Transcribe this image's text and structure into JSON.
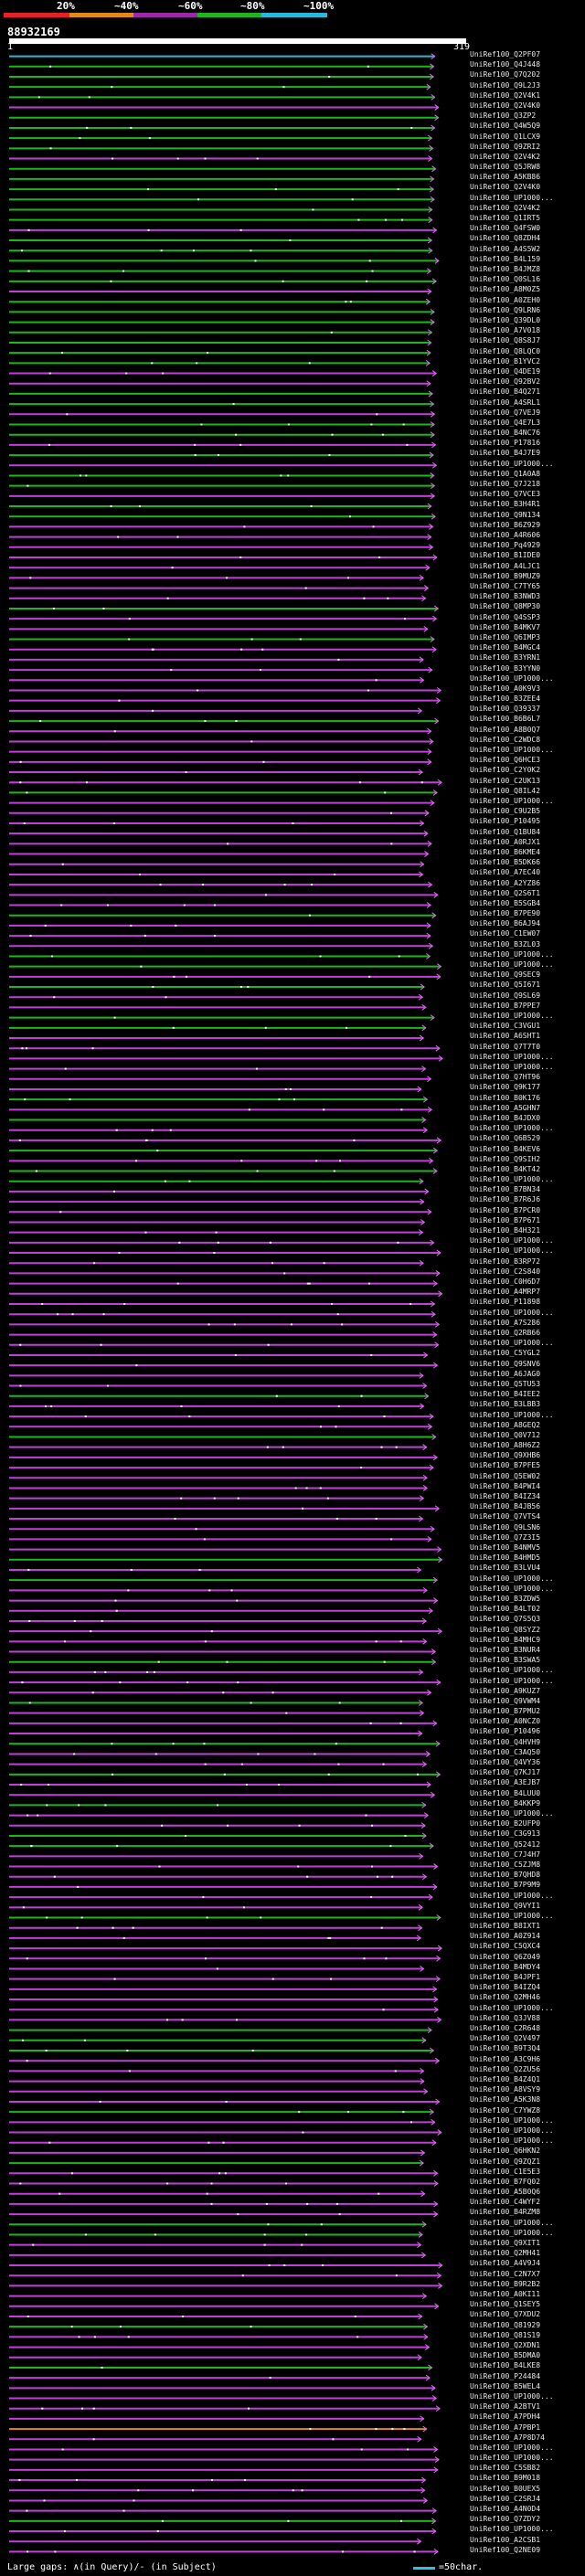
{
  "legend": {
    "labels": [
      "20%",
      "~40%",
      "~60%",
      "~80%",
      "~100%"
    ],
    "colors": [
      "#e8202a",
      "#e08a1c",
      "#9c2aa8",
      "#1fb51f",
      "#2bb8d8"
    ]
  },
  "query": {
    "id": "88932169",
    "start": "1",
    "end": "319"
  },
  "hits": [
    "UniRef100_Q2PF07",
    "UniRef100_Q4J448",
    "UniRef100_Q7Q202",
    "UniRef100_Q9L2J3",
    "UniRef100_Q2V4K1",
    "UniRef100_Q2V4K0",
    "UniRef100_Q3ZP2",
    "UniRef100_Q4W5Q9",
    "UniRef100_Q1LCX9",
    "UniRef100_Q9ZRI2",
    "UniRef100_Q2V4K2",
    "UniRef100_Q5JRW8",
    "UniRef100_A5KB86",
    "UniRef100_Q2V4K0",
    "UniRef100_UP1000...",
    "UniRef100_Q2V4K2",
    "UniRef100_Q1IRT5",
    "UniRef100_Q4FSW0",
    "UniRef100_Q8ZDH4",
    "UniRef100_A4S5W2",
    "UniRef100_B4L159",
    "UniRef100_B4JMZ8",
    "UniRef100_Q0SL16",
    "UniRef100_A8M0Z5",
    "UniRef100_A0ZEH0",
    "UniRef100_Q9LRN6",
    "UniRef100_Q39DL0",
    "UniRef100_A7V018",
    "UniRef100_Q8S8J7",
    "UniRef100_Q8LQC0",
    "UniRef100_B1YVC2",
    "UniRef100_Q4DE19",
    "UniRef100_Q92BV2",
    "UniRef100_B4Q271",
    "UniRef100_A4SRL1",
    "UniRef100_Q7VEJ9",
    "UniRef100_Q4E7L3",
    "UniRef100_B4NC76",
    "UniRef100_P17816",
    "UniRef100_B4J7E9",
    "UniRef100_UP1000...",
    "UniRef100_Q1A0A8",
    "UniRef100_Q7J218",
    "UniRef100_Q7VCE3",
    "UniRef100_B3H4R1",
    "UniRef100_Q9N134",
    "UniRef100_B6Z929",
    "UniRef100_A4R606",
    "UniRef100_Pq4929",
    "UniRef100_B1IDE0",
    "UniRef100_A4LJC1",
    "UniRef100_B9MUZ9",
    "UniRef100_C7TY65",
    "UniRef100_B3NWD3",
    "UniRef100_Q8MP30",
    "UniRef100_Q4SSP3",
    "UniRef100_B4MKV7",
    "UniRef100_Q6IMP3",
    "UniRef100_B4MGC4",
    "UniRef100_B3YRN1",
    "UniRef100_B3YYN0",
    "UniRef100_UP1000...",
    "UniRef100_A0K9V3",
    "UniRef100_B3ZEE4",
    "UniRef100_Q39337",
    "UniRef100_B6B6L7",
    "UniRef100_A8B0Q7",
    "UniRef100_C2WDC8",
    "UniRef100_UP1000...",
    "UniRef100_Q6HCE3",
    "UniRef100_C2Y0K2",
    "UniRef100_C2UK13",
    "UniRef100_Q8IL42",
    "UniRef100_UP1000...",
    "UniRef100_C9U2B5",
    "UniRef100_P10495",
    "UniRef100_Q1BU84",
    "UniRef100_A0RJX1",
    "UniRef100_B6KME4",
    "UniRef100_B5DK66",
    "UniRef100_A7EC40",
    "UniRef100_A2YZ86",
    "UniRef100_Q2S6T1",
    "UniRef100_B5SGB4",
    "UniRef100_B7PE90",
    "UniRef100_B6AJ94",
    "UniRef100_C1EW07",
    "UniRef100_B3ZL03",
    "UniRef100_UP1000...",
    "UniRef100_UP1000...",
    "UniRef100_Q9SEC9",
    "UniRef100_Q5I671",
    "UniRef100_Q9SL69",
    "UniRef100_B7PPE7",
    "UniRef100_UP1000...",
    "UniRef100_C3VGU1",
    "UniRef100_A6SHT1",
    "UniRef100_Q7T7T0",
    "UniRef100_UP1000...",
    "UniRef100_UP1000...",
    "UniRef100_Q7HT96",
    "UniRef100_Q9K177",
    "UniRef100_B0K176",
    "UniRef100_A5GHN7",
    "UniRef100_B4JDX0",
    "UniRef100_UP1000...",
    "UniRef100_Q6B529",
    "UniRef100_B4KEV6",
    "UniRef100_Q9SIH2",
    "UniRef100_B4KT42",
    "UniRef100_UP1000...",
    "UniRef100_B7BN34",
    "UniRef100_B7R6J6",
    "UniRef100_B7PCR0",
    "UniRef100_B7P671",
    "UniRef100_B4H321",
    "UniRef100_UP1000...",
    "UniRef100_UP1000...",
    "UniRef100_B3RP72",
    "UniRef100_C2S840",
    "UniRef100_C0H6D7",
    "UniRef100_A4MRP7",
    "UniRef100_P11898",
    "UniRef100_UP1000...",
    "UniRef100_A7S286",
    "UniRef100_Q2RB66",
    "UniRef100_UP1000...",
    "UniRef100_C5YGL2",
    "UniRef100_Q9SNV6",
    "UniRef100_A6JAG0",
    "UniRef100_Q5TU53",
    "UniRef100_B4IEE2",
    "UniRef100_B3LBB3",
    "UniRef100_UP1000...",
    "UniRef100_A8GEQ2",
    "UniRef100_Q0V712",
    "UniRef100_A8H6Z2",
    "UniRef100_Q9XHB6",
    "UniRef100_B7PFE5",
    "UniRef100_Q5EW02",
    "UniRef100_B4PWI4",
    "UniRef100_B4IZ34",
    "UniRef100_B4JB56",
    "UniRef100_Q7VTS4",
    "UniRef100_Q9LSN6",
    "UniRef100_Q7Z3I5",
    "UniRef100_B4NMV5",
    "UniRef100_B4HMD5",
    "UniRef100_B3LVU4",
    "UniRef100_UP1000...",
    "UniRef100_UP1000...",
    "UniRef100_B3ZDW5",
    "UniRef100_B4LT02",
    "UniRef100_Q7S5Q3",
    "UniRef100_Q8SYZ2",
    "UniRef100_B4MHC9",
    "UniRef100_B3NUR4",
    "UniRef100_B3SWA5",
    "UniRef100_UP1000...",
    "UniRef100_UP1000...",
    "UniRef100_A9KUZ7",
    "UniRef100_Q9VWM4",
    "UniRef100_B7PMU2",
    "UniRef100_A0NCZ0",
    "UniRef100_P10496",
    "UniRef100_Q4HVH9",
    "UniRef100_C3AQ50",
    "UniRef100_Q4VY36",
    "UniRef100_Q7KJ17",
    "UniRef100_A3EJB7",
    "UniRef100_B4LUU0",
    "UniRef100_B4KKP9",
    "UniRef100_UP1000...",
    "UniRef100_B2UFP0",
    "UniRef100_C3G913",
    "UniRef100_Q52412",
    "UniRef100_C7J4H7",
    "UniRef100_C5ZJM8",
    "UniRef100_B7QHD8",
    "UniRef100_B7P9M9",
    "UniRef100_UP1000...",
    "UniRef100_Q9VYI1",
    "UniRef100_UP1000...",
    "UniRef100_B8IXT1",
    "UniRef100_A0Z914",
    "UniRef100_C5QXC4",
    "UniRef100_Q6Z049",
    "UniRef100_B4MDY4",
    "UniRef100_B4JPF1",
    "UniRef100_B4IZQ4",
    "UniRef100_Q2MH46",
    "UniRef100_UP1000...",
    "UniRef100_Q3JV88",
    "UniRef100_C2R648",
    "UniRef100_Q2V497",
    "UniRef100_B9T3Q4",
    "UniRef100_A3C9H6",
    "UniRef100_Q2ZU56",
    "UniRef100_B4Z4Q1",
    "UniRef100_A8VSY9",
    "UniRef100_A5K3N8",
    "UniRef100_C7YWZ8",
    "UniRef100_UP1000...",
    "UniRef100_UP1000...",
    "UniRef100_UP1000...",
    "UniRef100_Q6HKN2",
    "UniRef100_Q9ZQZ1",
    "UniRef100_C1E5E3",
    "UniRef100_B7FQ02",
    "UniRef100_A5B0Q6",
    "UniRef100_C4WYF2",
    "UniRef100_B4RZM8",
    "UniRef100_UP1000...",
    "UniRef100_UP1000...",
    "UniRef100_Q9XIT1",
    "UniRef100_Q2MH41",
    "UniRef100_A4V9J4",
    "UniRef100_C2N7X7",
    "UniRef100_B9R2B2",
    "UniRef100_A0KI11",
    "UniRef100_Q1SEY5",
    "UniRef100_Q7XDU2",
    "UniRef100_Q81929",
    "UniRef100_Q81S19",
    "UniRef100_Q2XDN1",
    "UniRef100_B5DMA0",
    "UniRef100_B4LKE8",
    "UniRef100_P24484",
    "UniRef100_B5WEL4",
    "UniRef100_UP1000...",
    "UniRef100_A2BTV1",
    "UniRef100_A7PDH4",
    "UniRef100_A7PBP1",
    "UniRef100_A7P8D74",
    "UniRef100_UP1000...",
    "UniRef100_UP1000...",
    "UniRef100_C5SB82",
    "UniRef100_B9M018",
    "UniRef100_B0UEX5",
    "UniRef100_C2SRJ4",
    "UniRef100_A4N0D4",
    "UniRef100_Q7ZDY2",
    "UniRef100_UP1000...",
    "UniRef100_A2CSB1",
    "UniRef100_Q2NE09"
  ],
  "footer": {
    "gaps_text": "Large gaps: ∧(in Query)/- (in Subject)",
    "scale_text": "=50char."
  },
  "colors": {
    "green": "#1fb51f",
    "purple": "#c040d8",
    "orange": "#e08a1c",
    "cyan": "#2bb8d8",
    "arrow_pink": "#e070f0"
  }
}
